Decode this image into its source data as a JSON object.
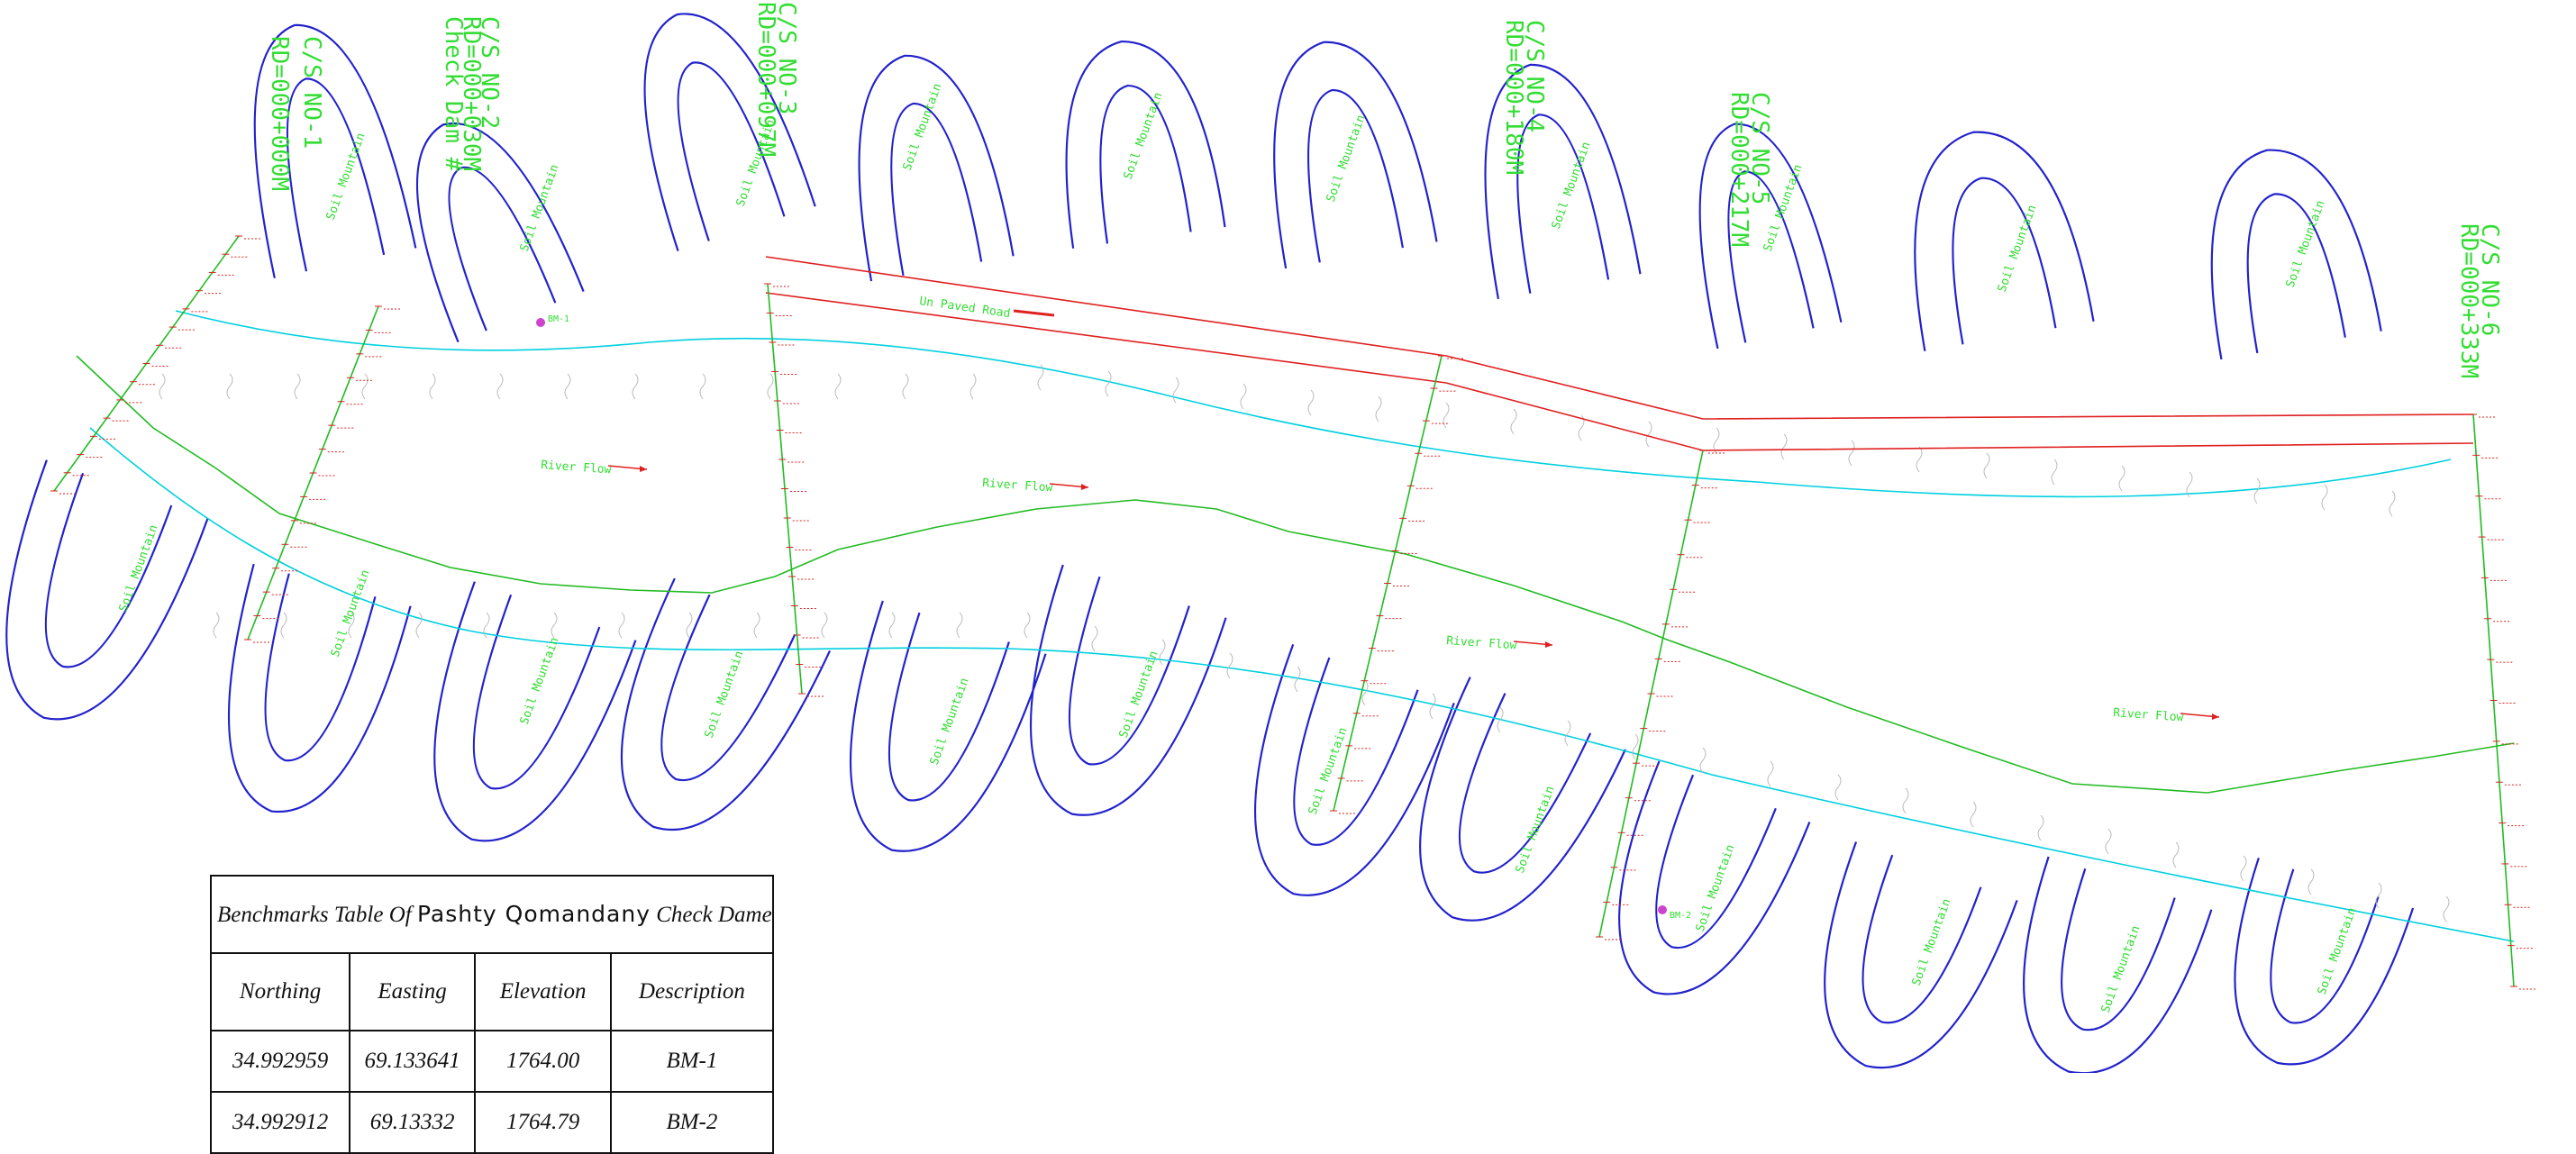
{
  "cross_sections": [
    {
      "line1": "C/S NO-1",
      "line2": "RD=000+000M",
      "line3": ""
    },
    {
      "line1": "C/S NO-2",
      "line2": "RD=000+030M",
      "line3": "Check Dam #"
    },
    {
      "line1": "C/S NO-3",
      "line2": "RD=000+097M",
      "line3": ""
    },
    {
      "line1": "C/S NO-4",
      "line2": "RD=000+180M",
      "line3": ""
    },
    {
      "line1": "C/S NO-5",
      "line2": "RD=000+217M",
      "line3": ""
    },
    {
      "line1": "C/S NO-6",
      "line2": "RD=000+333M",
      "line3": ""
    }
  ],
  "labels": {
    "mountain": "Soil Mountain",
    "river_flow": "River Flow",
    "road": "Un Paved Road",
    "bm_tag": "BM-1",
    "bm_tag_2": "BM-2"
  },
  "benchmark_table": {
    "title_italic_1": "Benchmarks Table Of",
    "title_plain": "Pashty Qomandany",
    "title_italic_2": "Check Dame",
    "headers": [
      "Northing",
      "Easting",
      "Elevation",
      "Description"
    ],
    "rows": [
      [
        "34.992959",
        "69.133641",
        "1764.00",
        "BM-1"
      ],
      [
        "34.992912",
        "69.13332",
        "1764.79",
        "BM-2"
      ]
    ]
  },
  "colors": {
    "mountain": "#2222cc",
    "river_bank": "#00d0e0",
    "road": "#e02020",
    "survey": "#22bb22",
    "label_green": "#33dd33",
    "annotation_red": "#dd2222",
    "background": "#ffffff"
  }
}
